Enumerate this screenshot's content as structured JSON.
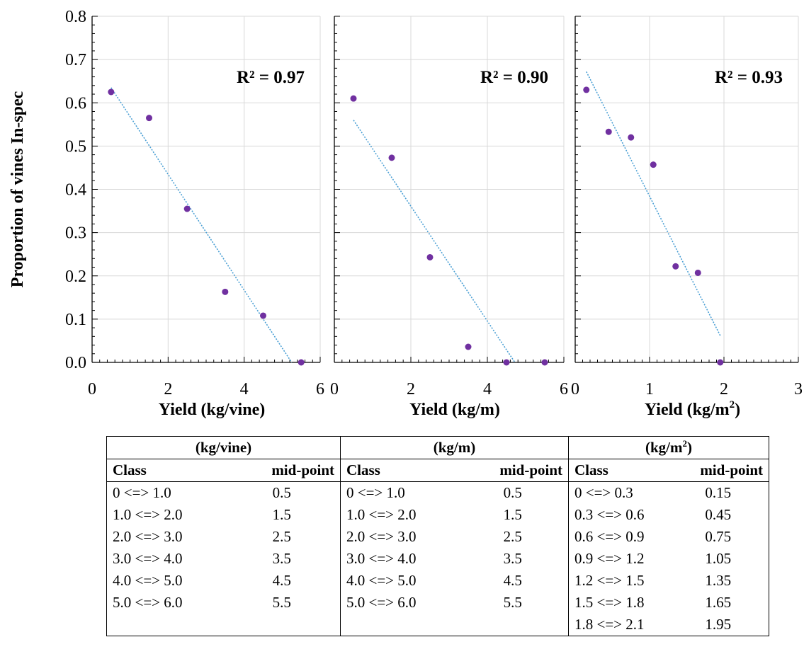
{
  "chart_data": [
    {
      "type": "scatter",
      "xlabel": "Yield (kg/vine)",
      "ylabel": "Proportion of  vines In-spec",
      "xlim": [
        0,
        6
      ],
      "ylim": [
        0,
        0.8
      ],
      "xticks": [
        "0",
        "2",
        "4",
        "6"
      ],
      "yticks": [
        "0.0",
        "0.1",
        "0.2",
        "0.3",
        "0.4",
        "0.5",
        "0.6",
        "0.7",
        "0.8"
      ],
      "annotation": "R² = 0.97",
      "grid": true,
      "point_color": "#7030a0",
      "trend_color": "#4a9fd4",
      "points": [
        {
          "x": 0.5,
          "y": 0.625
        },
        {
          "x": 1.5,
          "y": 0.565
        },
        {
          "x": 2.5,
          "y": 0.355
        },
        {
          "x": 3.5,
          "y": 0.163
        },
        {
          "x": 4.5,
          "y": 0.108
        },
        {
          "x": 5.5,
          "y": 0.0
        }
      ],
      "trendline": {
        "x": [
          0.5,
          5.25
        ],
        "y": [
          0.635,
          0.0
        ]
      }
    },
    {
      "type": "scatter",
      "xlabel": "Yield (kg/m)",
      "xlim": [
        0,
        6
      ],
      "ylim": [
        0,
        0.8
      ],
      "xticks": [
        "0",
        "2",
        "4",
        "6"
      ],
      "annotation": "R² = 0.90",
      "grid": true,
      "point_color": "#7030a0",
      "trend_color": "#4a9fd4",
      "points": [
        {
          "x": 0.5,
          "y": 0.61
        },
        {
          "x": 1.5,
          "y": 0.473
        },
        {
          "x": 2.5,
          "y": 0.243
        },
        {
          "x": 3.5,
          "y": 0.036
        },
        {
          "x": 4.5,
          "y": 0.0
        },
        {
          "x": 5.5,
          "y": 0.0
        }
      ],
      "trendline": {
        "x": [
          0.5,
          4.72
        ],
        "y": [
          0.56,
          0.0
        ]
      }
    },
    {
      "type": "scatter",
      "xlabel": "Yield (kg/m²)",
      "xlim": [
        0,
        3
      ],
      "ylim": [
        0,
        0.8
      ],
      "xticks": [
        "0",
        "1",
        "2",
        "3"
      ],
      "annotation": "R² = 0.93",
      "grid": true,
      "point_color": "#7030a0",
      "trend_color": "#4a9fd4",
      "points": [
        {
          "x": 0.15,
          "y": 0.63
        },
        {
          "x": 0.45,
          "y": 0.533
        },
        {
          "x": 0.75,
          "y": 0.52
        },
        {
          "x": 1.05,
          "y": 0.457
        },
        {
          "x": 1.35,
          "y": 0.222
        },
        {
          "x": 1.65,
          "y": 0.207
        },
        {
          "x": 1.95,
          "y": 0.0
        }
      ],
      "trendline": {
        "x": [
          0.15,
          1.95
        ],
        "y": [
          0.672,
          0.062
        ]
      }
    }
  ],
  "table": {
    "groups": [
      {
        "unit_base": "(kg/vine)",
        "unit_sup": ""
      },
      {
        "unit_base": "(kg/m)",
        "unit_sup": ""
      },
      {
        "unit_base": "(kg/m",
        "unit_sup": "2",
        "unit_tail": ")"
      }
    ],
    "class_header": "Class",
    "mid_header": "mid-point",
    "rows": [
      [
        "0 <=> 1.0",
        "0.5",
        "0 <=> 1.0",
        "0.5",
        "0 <=> 0.3",
        "0.15"
      ],
      [
        "1.0 <=> 2.0",
        "1.5",
        "1.0 <=> 2.0",
        "1.5",
        "0.3 <=> 0.6",
        "0.45"
      ],
      [
        "2.0 <=> 3.0",
        "2.5",
        "2.0 <=> 3.0",
        "2.5",
        "0.6 <=> 0.9",
        "0.75"
      ],
      [
        "3.0 <=> 4.0",
        "3.5",
        "3.0 <=> 4.0",
        "3.5",
        "0.9 <=> 1.2",
        "1.05"
      ],
      [
        "4.0 <=> 5.0",
        "4.5",
        "4.0 <=> 5.0",
        "4.5",
        "1.2 <=> 1.5",
        "1.35"
      ],
      [
        "5.0 <=> 6.0",
        "5.5",
        "5.0 <=> 6.0",
        "5.5",
        "1.5 <=> 1.8",
        "1.65"
      ],
      [
        "",
        "",
        "",
        "",
        "1.8 <=> 2.1",
        "1.95"
      ]
    ]
  }
}
